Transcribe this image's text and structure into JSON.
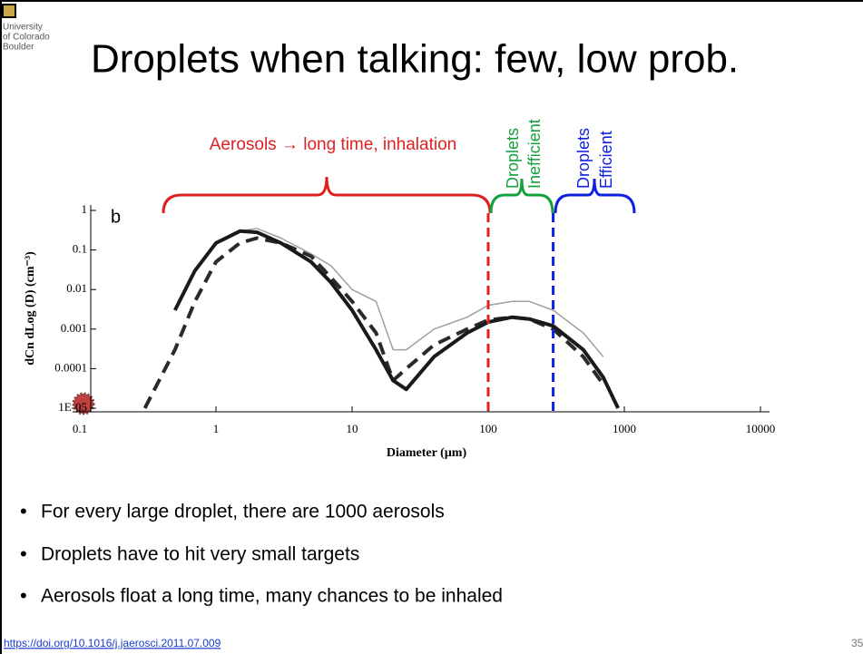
{
  "logo": {
    "lines": [
      "University",
      "of Colorado",
      "Boulder"
    ]
  },
  "title": "Droplets when talking: few, low prob.",
  "chart_data": {
    "type": "line",
    "panel_label": "b",
    "x_label": "Diameter (µm)",
    "y_label": "dCn dLog (D) (cm⁻³)",
    "xscale": "log",
    "yscale": "log",
    "xlim": [
      0.1,
      10000
    ],
    "ylim": [
      1e-05,
      1
    ],
    "xticks": [
      0.1,
      1,
      10,
      100,
      1000,
      10000
    ],
    "yticks": [
      1,
      0.1,
      0.01,
      0.001,
      0.0001,
      {
        "value": 1e-05,
        "label": "1E-05"
      }
    ],
    "x": [
      0.3,
      0.5,
      0.7,
      1,
      1.5,
      2,
      3,
      5,
      7,
      10,
      15,
      20,
      25,
      40,
      70,
      100,
      150,
      200,
      300,
      500,
      700,
      900
    ],
    "series": [
      {
        "color": "#a0a0a0",
        "width": 1.5,
        "dash": false,
        "values": [
          null,
          null,
          null,
          null,
          0.3,
          0.35,
          0.2,
          0.08,
          0.04,
          0.01,
          0.005,
          0.0003,
          0.0003,
          0.001,
          0.002,
          0.004,
          0.005,
          0.005,
          0.003,
          0.0008,
          0.0002,
          null
        ]
      },
      {
        "color": "#2a2a2a",
        "width": 4,
        "dash": true,
        "values": [
          1e-05,
          0.0003,
          0.005,
          0.05,
          0.15,
          0.2,
          0.15,
          0.07,
          0.02,
          0.005,
          0.0008,
          5e-05,
          0.0001,
          0.0004,
          0.001,
          0.0017,
          0.002,
          0.0018,
          0.001,
          0.0002,
          4e-05,
          null
        ]
      },
      {
        "color": "#1a1a1a",
        "width": 4,
        "dash": false,
        "values": [
          null,
          0.003,
          0.03,
          0.15,
          0.3,
          0.28,
          0.15,
          0.05,
          0.015,
          0.003,
          0.0003,
          5e-05,
          3e-05,
          0.0002,
          0.0008,
          0.0015,
          0.002,
          0.0018,
          0.0012,
          0.0003,
          6e-05,
          1e-05
        ]
      }
    ],
    "vlines": [
      {
        "x": 100,
        "color": "#e02020"
      },
      {
        "x": 300,
        "color": "#1020e0"
      }
    ],
    "annotations": {
      "aerosols": "Aerosols → long time, inhalation",
      "droplets_1": "Droplets",
      "inefficient": "Inefficient",
      "droplets_2": "Droplets",
      "efficient": "Efficient"
    }
  },
  "bullets": [
    "For every large droplet, there are 1000 aerosols",
    "Droplets have to hit very small targets",
    "Aerosols float a long time, many chances to be inhaled"
  ],
  "link": "https://doi.org/10.1016/j.jaerosci.2011.07.009",
  "page_number": "35"
}
